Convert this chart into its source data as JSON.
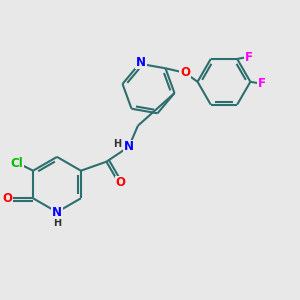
{
  "bg_color": "#e8e8e8",
  "atom_colors": {
    "N": "#0000ff",
    "O": "#ff0000",
    "Cl": "#00bb00",
    "F": "#ff00ff",
    "C": "#1a1a1a",
    "H": "#333333"
  },
  "bond_color": "#2d6e6e",
  "font_size": 8.5,
  "figsize": [
    3.0,
    3.0
  ],
  "dpi": 100
}
